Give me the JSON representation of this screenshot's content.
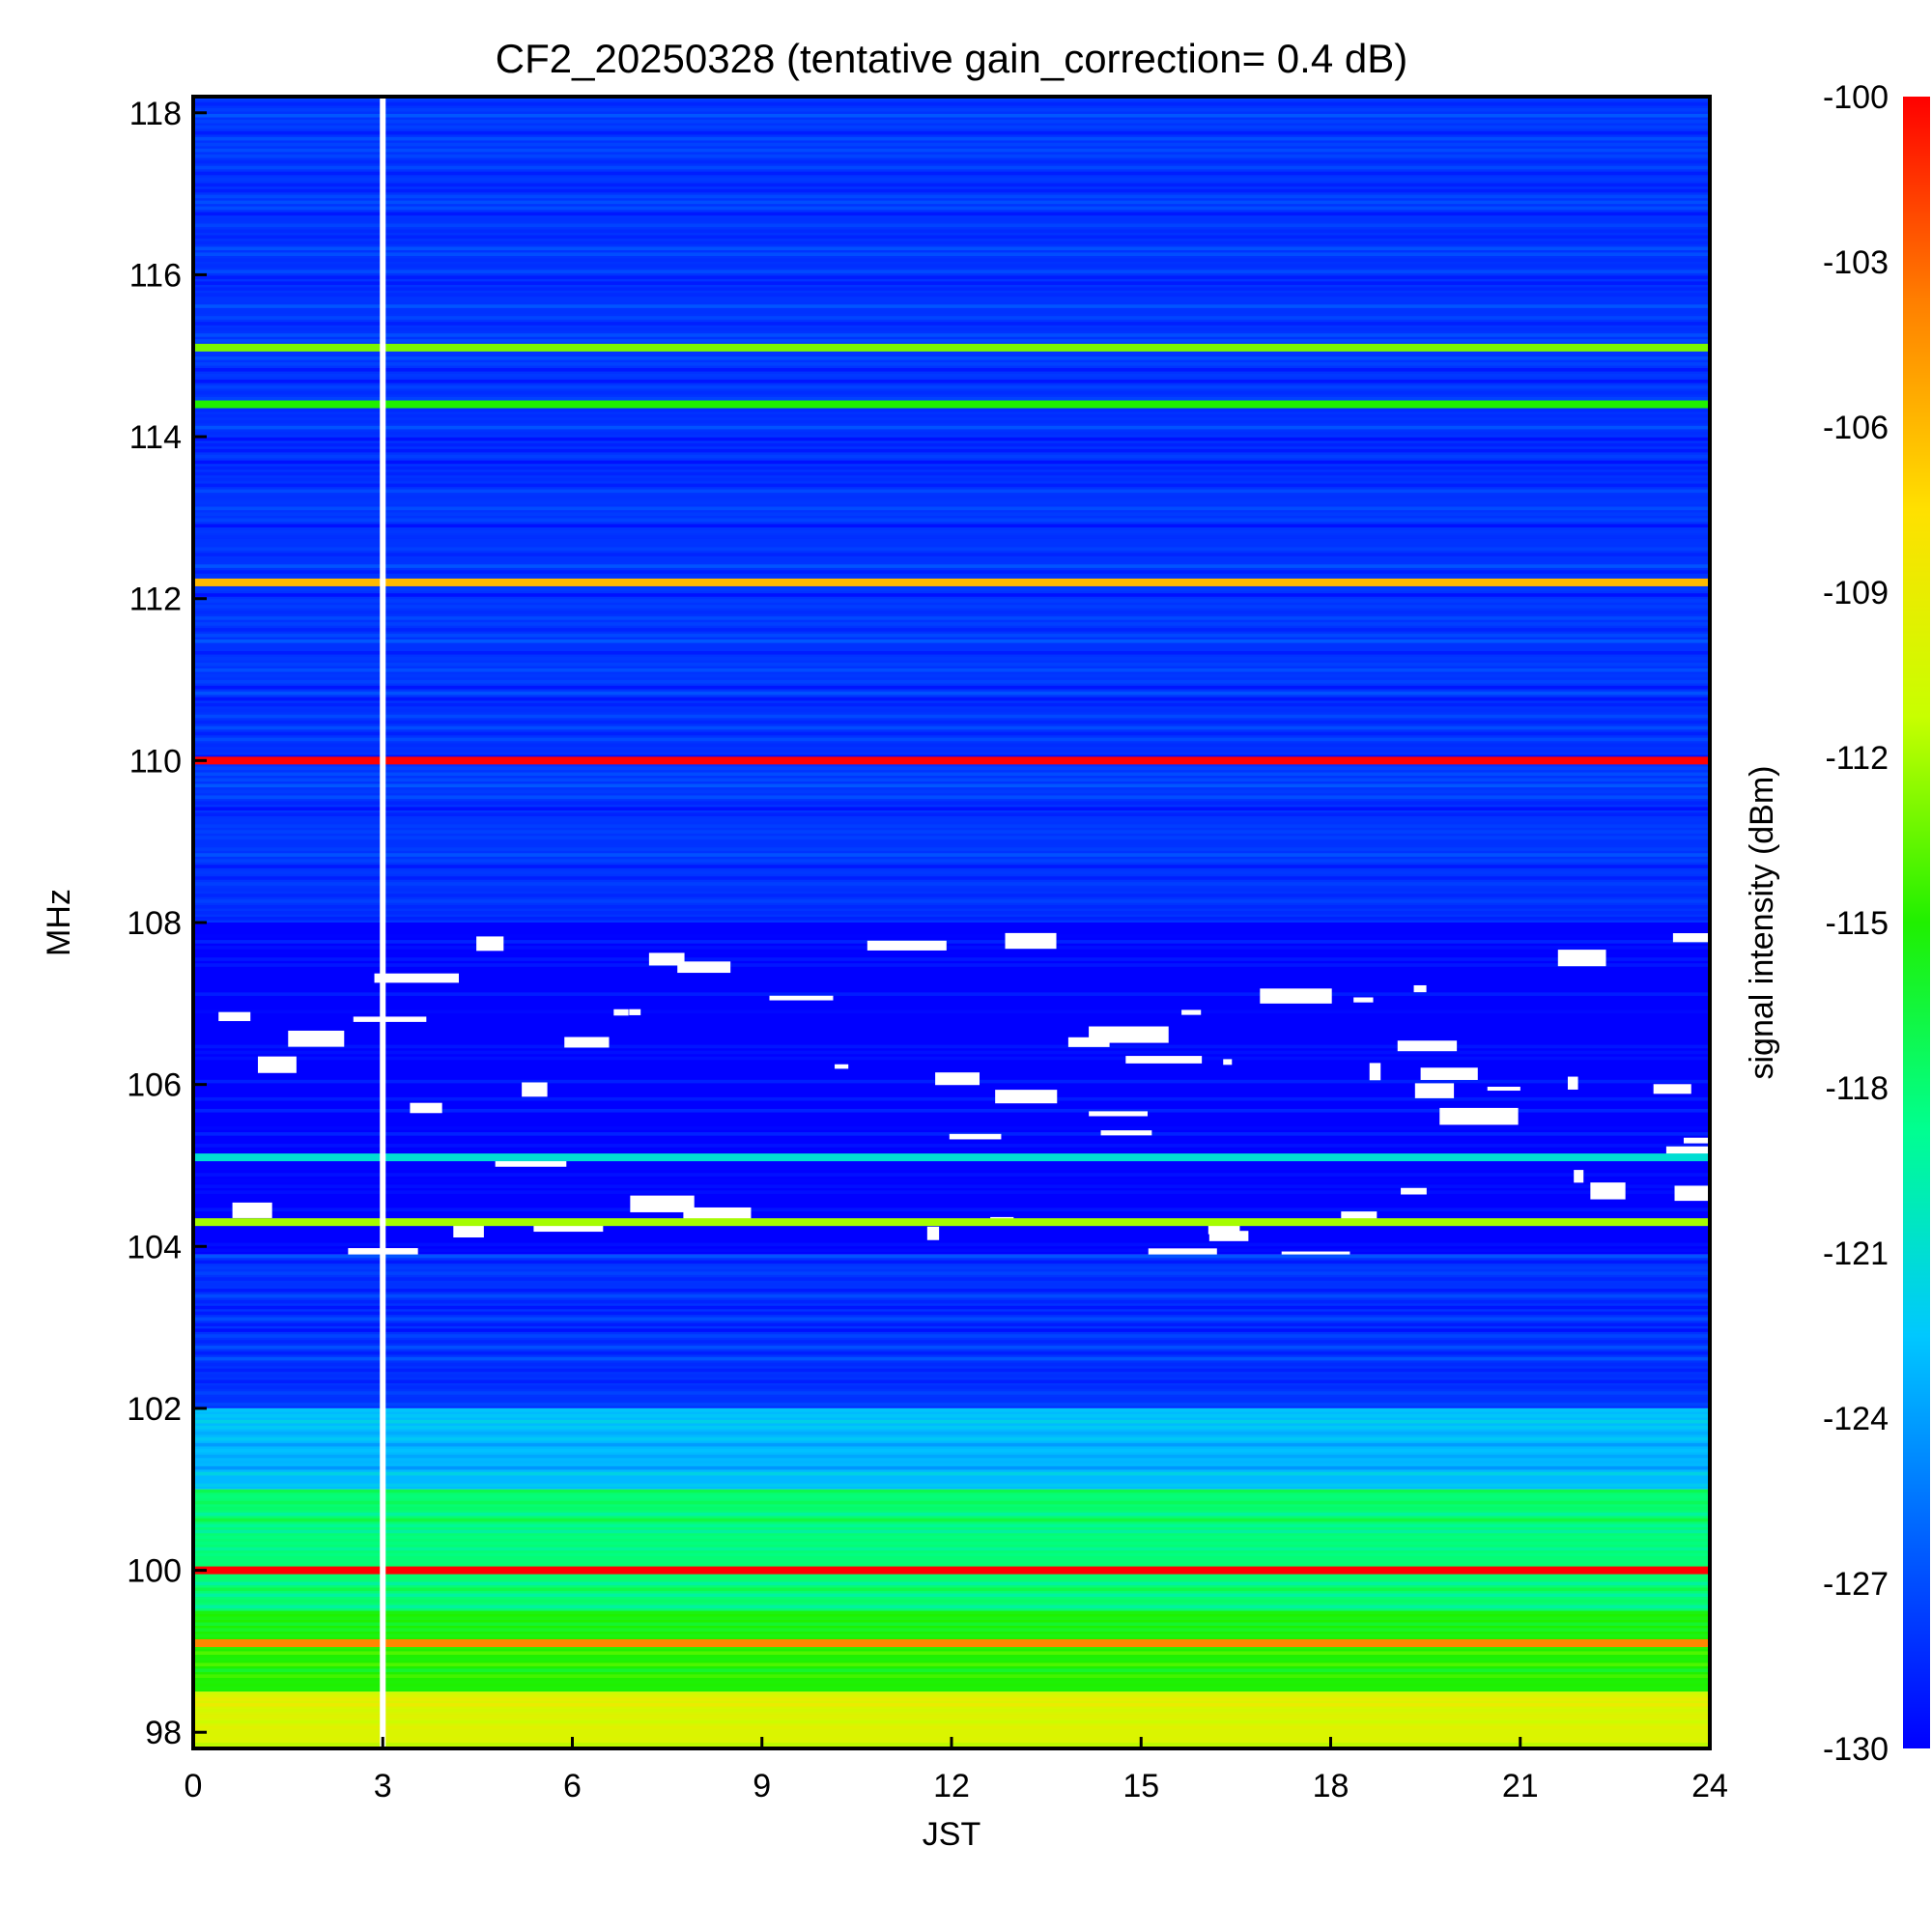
{
  "chart_data": {
    "type": "heatmap",
    "title": "CF2_20250328 (tentative gain_correction=  0.4 dB)",
    "xlabel": "JST",
    "ylabel": "MHz",
    "colorbar_label": "signal intensity (dBm)",
    "xlim": [
      0,
      24
    ],
    "ylim": [
      97.8,
      118.2
    ],
    "clim": [
      -130,
      -100
    ],
    "x_ticks": [
      0,
      3,
      6,
      9,
      12,
      15,
      18,
      21,
      24
    ],
    "x_tick_labels": [
      "0",
      "3",
      "6",
      "9",
      "12",
      "15",
      "18",
      "21",
      "24"
    ],
    "y_ticks": [
      98,
      100,
      102,
      104,
      106,
      108,
      110,
      112,
      114,
      116,
      118
    ],
    "y_tick_labels": [
      "98",
      "100",
      "102",
      "104",
      "106",
      "108",
      "110",
      "112",
      "114",
      "116",
      "118"
    ],
    "colorbar_ticks": [
      -100,
      -103,
      -106,
      -109,
      -112,
      -115,
      -118,
      -121,
      -124,
      -127,
      -130
    ],
    "colorbar_tick_labels": [
      "-100",
      "-103",
      "-106",
      "-109",
      "-112",
      "-115",
      "-118",
      "-121",
      "-124",
      "-127",
      "-130"
    ],
    "colormap": [
      "#0000ff",
      "#0060ff",
      "#00c8ff",
      "#00ff90",
      "#20f000",
      "#c8ff00",
      "#ffe000",
      "#ff8000",
      "#ff0000"
    ],
    "missing_data_color": "#ffffff",
    "data_gap_jst": 3.0,
    "strong_signals": [
      {
        "mhz": 110.0,
        "dbm": -100,
        "start_jst": 0,
        "end_jst": 24
      },
      {
        "mhz": 100.0,
        "dbm": -100,
        "start_jst": 0,
        "end_jst": 24
      },
      {
        "mhz": 112.2,
        "dbm": -106,
        "start_jst": 0,
        "end_jst": 24
      },
      {
        "mhz": 115.1,
        "dbm": -113,
        "start_jst": 0,
        "end_jst": 24
      },
      {
        "mhz": 114.4,
        "dbm": -115,
        "start_jst": 0,
        "end_jst": 24
      },
      {
        "mhz": 105.1,
        "dbm": -121,
        "start_jst": 0,
        "end_jst": 24
      },
      {
        "mhz": 99.1,
        "dbm": -104,
        "start_jst": 0,
        "end_jst": 24
      },
      {
        "mhz": 104.3,
        "dbm": -112,
        "start_jst": 0,
        "end_jst": 24
      }
    ],
    "background_bands": [
      {
        "mhz_range": [
          108.0,
          118.2
        ],
        "dbm": -128
      },
      {
        "mhz_range": [
          103.9,
          108.0
        ],
        "dbm": -130
      },
      {
        "mhz_range": [
          102.0,
          103.9
        ],
        "dbm": -128
      },
      {
        "mhz_range": [
          101.0,
          102.0
        ],
        "dbm": -123
      },
      {
        "mhz_range": [
          99.5,
          101.0
        ],
        "dbm": -118
      },
      {
        "mhz_range": [
          98.5,
          99.5
        ],
        "dbm": -115
      },
      {
        "mhz_range": [
          97.8,
          98.5
        ],
        "dbm": -110
      }
    ],
    "grid": false,
    "legend": "colorbar-right"
  }
}
